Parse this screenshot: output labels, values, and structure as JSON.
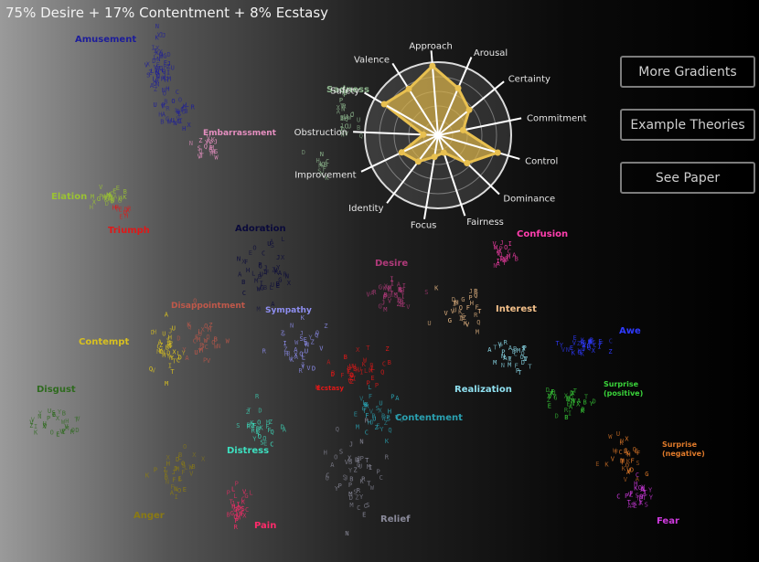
{
  "headline": "75% Desire + 17% Contentment + 8% Ecstasy",
  "buttons": {
    "more_gradients": "More Gradients",
    "example_theories": "Example Theories",
    "see_paper": "See Paper"
  },
  "radar": {
    "axes": [
      "Approach",
      "Arousal",
      "Certainty",
      "Commitment",
      "Control",
      "Dominance",
      "Fairness",
      "Focus",
      "Identity",
      "Improvement",
      "Obstruction",
      "Safety",
      "Valence"
    ],
    "levels": [
      0.95,
      0.7,
      0.55,
      0.35,
      0.85,
      0.55,
      0.25,
      0.3,
      0.45,
      0.55,
      0.2,
      0.85,
      0.75
    ],
    "fill_color": "#d8b24a",
    "stroke_color": "#e8c050"
  },
  "clusters": [
    {
      "name": "Amusement",
      "color": "#1d1d9a"
    },
    {
      "name": "Embarrassment",
      "color": "#e58fc0"
    },
    {
      "name": "Elation",
      "color": "#9ac233"
    },
    {
      "name": "Triumph",
      "color": "#e01818"
    },
    {
      "name": "Sadness",
      "color": "#8fb88f"
    },
    {
      "name": "Adoration",
      "color": "#0a0a3a"
    },
    {
      "name": "Desire",
      "color": "#b03a7a"
    },
    {
      "name": "Confusion",
      "color": "#ff3fae"
    },
    {
      "name": "Interest",
      "color": "#f3c08a"
    },
    {
      "name": "Disappointment",
      "color": "#c0584a"
    },
    {
      "name": "Sympathy",
      "color": "#8e8ef0"
    },
    {
      "name": "Awe",
      "color": "#2f3aff"
    },
    {
      "name": "Contempt",
      "color": "#d8c020"
    },
    {
      "name": "Realization",
      "color": "#8fe0f0"
    },
    {
      "name": "Surprise (positive)",
      "color": "#3ad33a"
    },
    {
      "name": "Disgust",
      "color": "#2e6a1e"
    },
    {
      "name": "Ecstasy",
      "color": "#e01818"
    },
    {
      "name": "Contentment",
      "color": "#2aa0b0"
    },
    {
      "name": "Surprise (negative)",
      "color": "#e07a2a"
    },
    {
      "name": "Distress",
      "color": "#3de0c0"
    },
    {
      "name": "Anger",
      "color": "#8a7a14"
    },
    {
      "name": "Pain",
      "color": "#ff2a6a"
    },
    {
      "name": "Relief",
      "color": "#8a8a9a"
    },
    {
      "name": "Fear",
      "color": "#d03ae0"
    }
  ]
}
